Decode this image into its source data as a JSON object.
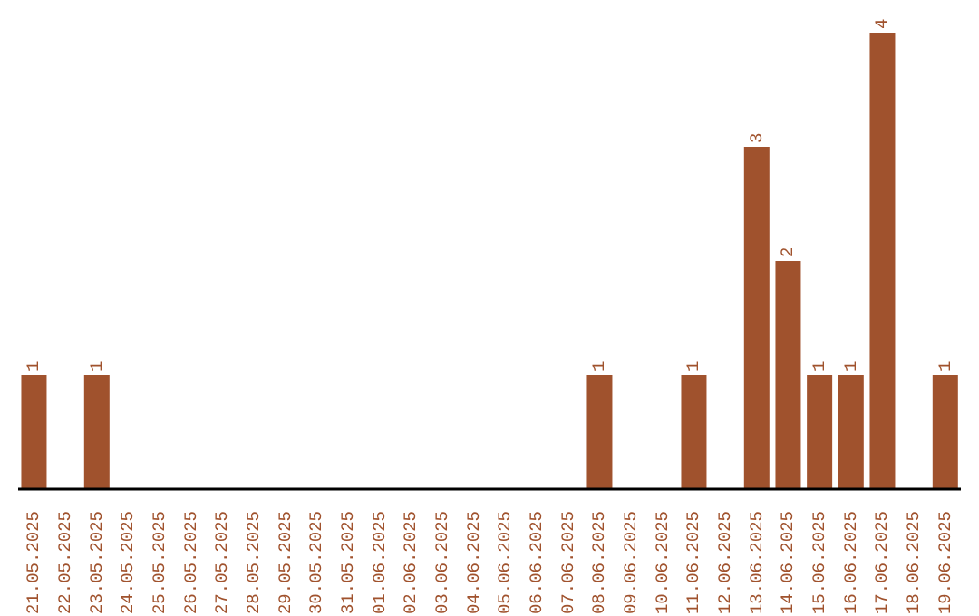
{
  "chart_data": {
    "type": "bar",
    "categories": [
      "21.05.2025",
      "22.05.2025",
      "23.05.2025",
      "24.05.2025",
      "25.05.2025",
      "26.05.2025",
      "27.05.2025",
      "28.05.2025",
      "29.05.2025",
      "30.05.2025",
      "31.05.2025",
      "01.06.2025",
      "02.06.2025",
      "03.06.2025",
      "04.06.2025",
      "05.06.2025",
      "06.06.2025",
      "07.06.2025",
      "08.06.2025",
      "09.06.2025",
      "10.06.2025",
      "11.06.2025",
      "12.06.2025",
      "13.06.2025",
      "14.06.2025",
      "15.06.2025",
      "16.06.2025",
      "17.06.2025",
      "18.06.2025",
      "19.06.2025"
    ],
    "values": [
      1,
      0,
      1,
      0,
      0,
      0,
      0,
      0,
      0,
      0,
      0,
      0,
      0,
      0,
      0,
      0,
      0,
      0,
      1,
      0,
      0,
      1,
      0,
      3,
      2,
      1,
      1,
      4,
      0,
      1
    ],
    "value_labels": [
      "1",
      null,
      "1",
      null,
      null,
      null,
      null,
      null,
      null,
      null,
      null,
      null,
      null,
      null,
      null,
      null,
      null,
      null,
      "1",
      null,
      null,
      "1",
      null,
      "3",
      "2",
      "1",
      "1",
      "4",
      null,
      "1"
    ],
    "color": "#a0522d",
    "tick_labels": "x"
  }
}
